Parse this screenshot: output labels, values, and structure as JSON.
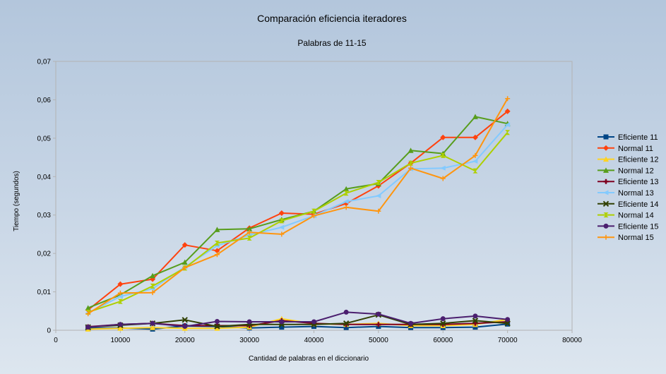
{
  "chart_data": {
    "type": "line",
    "title": "Comparación eficiencia iteradores",
    "subtitle": "Palabras de 11-15",
    "xlabel": "Cantidad de palabras en el diccionario",
    "ylabel": "Tiempo (segundos)",
    "xlim": [
      0,
      80000
    ],
    "ylim": [
      0,
      0.07
    ],
    "x_ticks": [
      0,
      10000,
      20000,
      30000,
      40000,
      50000,
      60000,
      70000,
      80000
    ],
    "x_tick_labels": [
      "0",
      "10000",
      "20000",
      "30000",
      "40000",
      "50000",
      "60000",
      "70000",
      "80000"
    ],
    "y_ticks": [
      0,
      0.01,
      0.02,
      0.03,
      0.04,
      0.05,
      0.06,
      0.07
    ],
    "y_tick_labels": [
      "0",
      "0,01",
      "0,02",
      "0,03",
      "0,04",
      "0,05",
      "0,06",
      "0,07"
    ],
    "grid": false,
    "legend_position": "right",
    "x": [
      5000,
      10000,
      15000,
      20000,
      25000,
      30000,
      35000,
      40000,
      45000,
      50000,
      55000,
      60000,
      65000,
      70000
    ],
    "series": [
      {
        "name": "Eficiente 11",
        "color": "#004586",
        "marker": "square",
        "values": [
          0.0005,
          0.0006,
          0.0003,
          0.0011,
          0.001,
          0.0006,
          0.0008,
          0.001,
          0.0007,
          0.001,
          0.0007,
          0.0007,
          0.0008,
          0.0016
        ]
      },
      {
        "name": "Normal 11",
        "color": "#ff420e",
        "marker": "diamond",
        "values": [
          0.0053,
          0.012,
          0.0133,
          0.0222,
          0.0207,
          0.0266,
          0.0305,
          0.0302,
          0.033,
          0.0376,
          0.0435,
          0.0502,
          0.0502,
          0.057
        ]
      },
      {
        "name": "Eficiente 12",
        "color": "#ffd320",
        "marker": "triangle",
        "values": [
          0.0003,
          0.0005,
          0.0007,
          0.0005,
          0.0005,
          0.0008,
          0.003,
          0.0017,
          0.0015,
          0.0018,
          0.0012,
          0.0012,
          0.0015,
          0.0028
        ]
      },
      {
        "name": "Normal 12",
        "color": "#579d1c",
        "marker": "triangle",
        "values": [
          0.0058,
          0.0092,
          0.0142,
          0.0177,
          0.0262,
          0.0264,
          0.0288,
          0.031,
          0.0368,
          0.0382,
          0.0468,
          0.046,
          0.0556,
          0.0538
        ]
      },
      {
        "name": "Eficiente 13",
        "color": "#7e0021",
        "marker": "cross",
        "values": [
          0.0009,
          0.0015,
          0.0018,
          0.0012,
          0.0012,
          0.0012,
          0.0025,
          0.0018,
          0.0015,
          0.0015,
          0.0015,
          0.0015,
          0.0018,
          0.0022
        ]
      },
      {
        "name": "Normal 13",
        "color": "#83caff",
        "marker": "arrow",
        "values": [
          0.0045,
          0.0088,
          0.0108,
          0.0165,
          0.022,
          0.0248,
          0.0268,
          0.0298,
          0.0335,
          0.035,
          0.042,
          0.0422,
          0.044,
          0.0535
        ]
      },
      {
        "name": "Eficiente 14",
        "color": "#314004",
        "marker": "x",
        "values": [
          0.0008,
          0.0013,
          0.0018,
          0.0027,
          0.001,
          0.0015,
          0.0015,
          0.0015,
          0.0018,
          0.004,
          0.0015,
          0.0018,
          0.0025,
          0.0018
        ]
      },
      {
        "name": "Normal 14",
        "color": "#aecf00",
        "marker": "hourglass",
        "values": [
          0.0047,
          0.0075,
          0.0115,
          0.0162,
          0.0227,
          0.024,
          0.0285,
          0.031,
          0.0357,
          0.0385,
          0.0435,
          0.0455,
          0.0415,
          0.0515
        ]
      },
      {
        "name": "Eficiente 15",
        "color": "#4b1f6f",
        "marker": "circle",
        "values": [
          0.0008,
          0.0015,
          0.0018,
          0.001,
          0.0023,
          0.0022,
          0.0022,
          0.0022,
          0.0047,
          0.0042,
          0.0018,
          0.003,
          0.0037,
          0.0028
        ]
      },
      {
        "name": "Normal 15",
        "color": "#ff950e",
        "marker": "plus",
        "values": [
          0.0043,
          0.0097,
          0.0098,
          0.0163,
          0.0197,
          0.0255,
          0.025,
          0.0298,
          0.032,
          0.031,
          0.0422,
          0.0395,
          0.0455,
          0.0603
        ]
      }
    ]
  }
}
